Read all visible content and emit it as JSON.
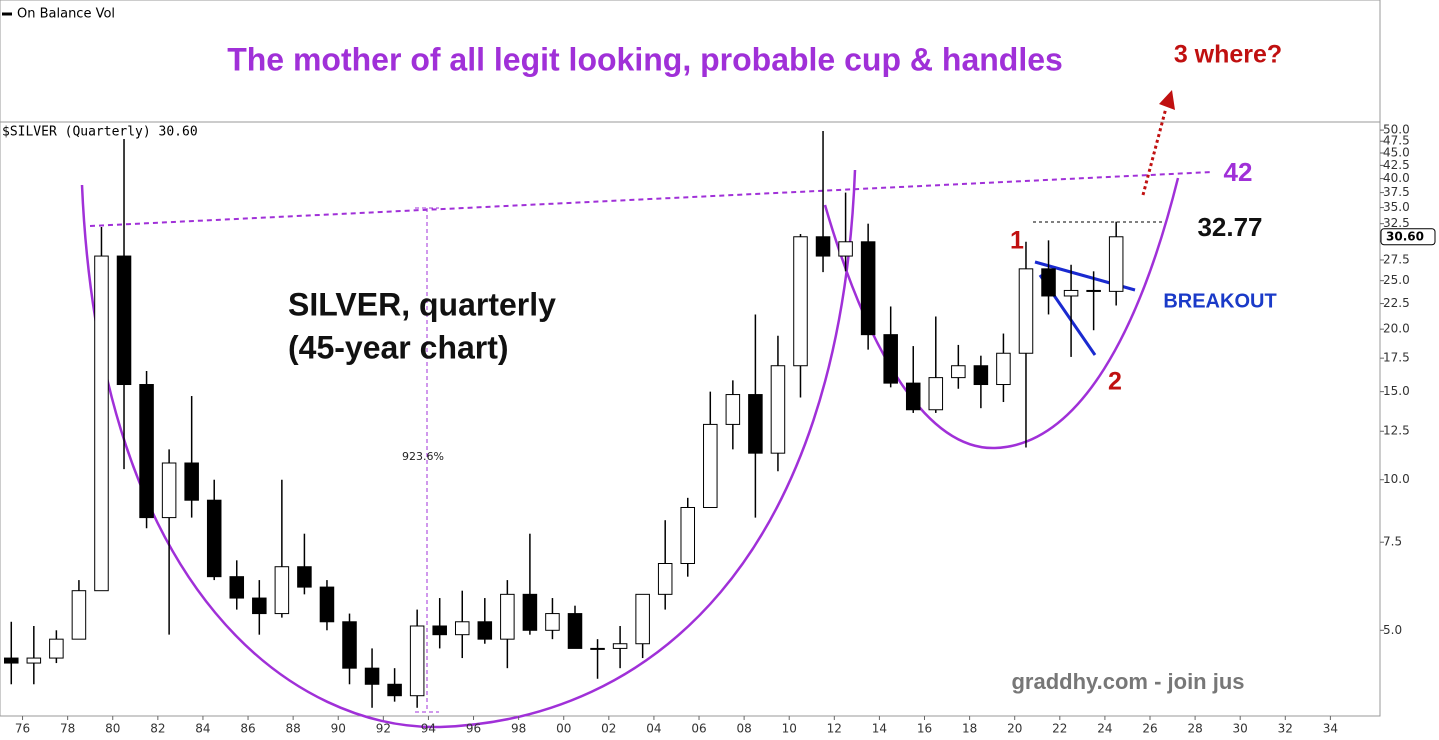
{
  "chart_data": {
    "type": "candlestick",
    "indicator_label": "On Balance Vol",
    "series_label": "$SILVER (Quarterly) 30.60",
    "title": "The mother of all legit looking, probable cup & handles",
    "annotations": {
      "three": "3 where?",
      "level": "42",
      "high_level": "32.77",
      "one": "1",
      "two": "2",
      "breakout": "BREAKOUT",
      "name": "SILVER, quarterly",
      "span": "(45-year chart)",
      "gain": "923.6%",
      "credit": "graddhy.com - join jus"
    },
    "last_price": {
      "value": 30.6,
      "label": "30.60"
    },
    "up_color": "#ffffff",
    "down_color": "#000000",
    "log_scale": true,
    "x": [
      1975,
      1976,
      1977,
      1978,
      1979,
      1980,
      1981,
      1982,
      1983,
      1984,
      1985,
      1986,
      1987,
      1988,
      1989,
      1990,
      1991,
      1992,
      1993,
      1994,
      1995,
      1996,
      1997,
      1998,
      1999,
      2000,
      2001,
      2002,
      2003,
      2004,
      2005,
      2006,
      2007,
      2008,
      2009,
      2010,
      2011,
      2012,
      2013,
      2014,
      2015,
      2016,
      2017,
      2018,
      2019,
      2020,
      2021,
      2022,
      2023,
      2024
    ],
    "open": [
      4.4,
      4.3,
      4.4,
      4.8,
      6.0,
      28,
      15.5,
      8.4,
      10.8,
      9.1,
      6.4,
      5.8,
      5.4,
      6.7,
      6.1,
      5.2,
      4.2,
      3.9,
      3.7,
      5.1,
      4.9,
      5.2,
      4.8,
      5.9,
      5.0,
      5.4,
      4.6,
      4.6,
      4.7,
      5.9,
      6.8,
      8.8,
      12.9,
      14.8,
      11.3,
      16.9,
      30.6,
      28,
      29.9,
      19.5,
      15.6,
      13.8,
      16,
      16.9,
      15.5,
      17.9,
      26.4,
      23.3,
      23.9,
      23.8
    ],
    "high": [
      5.2,
      5.1,
      5.0,
      6.3,
      32,
      48,
      16.5,
      11.5,
      14.7,
      10,
      6.9,
      6.3,
      10,
      7.8,
      6.3,
      5.4,
      4.6,
      4.2,
      5.5,
      5.8,
      6.0,
      5.8,
      6.3,
      7.8,
      5.8,
      5.6,
      4.8,
      5.1,
      5.9,
      8.3,
      9.2,
      15,
      15.8,
      21.4,
      19.4,
      31,
      49.8,
      37.5,
      32.5,
      22.2,
      18.5,
      21.2,
      18.6,
      17.7,
      19.6,
      29.9,
      30.1,
      26.9,
      26.1,
      32.8
    ],
    "low": [
      3.9,
      3.9,
      4.3,
      4.8,
      6.0,
      10.5,
      8,
      4.9,
      8.4,
      6.3,
      5.5,
      4.9,
      5.3,
      5.9,
      5.0,
      3.9,
      3.5,
      3.6,
      3.5,
      4.6,
      4.4,
      4.7,
      4.2,
      4.9,
      4.8,
      4.6,
      4.0,
      4.2,
      4.4,
      5.5,
      6.4,
      8.8,
      11.5,
      8.4,
      10.4,
      14.6,
      26,
      26.1,
      18.2,
      15.3,
      13.6,
      13.6,
      15.2,
      13.9,
      14.3,
      11.6,
      21.4,
      17.6,
      19.9,
      22.3
    ],
    "close": [
      4.3,
      4.4,
      4.8,
      6.0,
      28,
      15.5,
      8.4,
      10.8,
      9.1,
      6.4,
      5.8,
      5.4,
      6.7,
      6.1,
      5.2,
      4.2,
      3.9,
      3.7,
      5.1,
      4.9,
      5.2,
      4.8,
      5.9,
      5.0,
      5.4,
      4.6,
      4.6,
      4.7,
      5.9,
      6.8,
      8.8,
      12.9,
      14.8,
      11.3,
      16.9,
      30.6,
      28,
      29.9,
      19.5,
      15.6,
      13.8,
      16,
      16.9,
      15.5,
      17.9,
      26.4,
      23.3,
      23.9,
      23.8,
      30.6
    ],
    "xlim": [
      1975,
      2036.2
    ],
    "xticks": [
      {
        "value": 1976,
        "label": "76"
      },
      {
        "value": 1978,
        "label": "78"
      },
      {
        "value": 1980,
        "label": "80"
      },
      {
        "value": 1982,
        "label": "82"
      },
      {
        "value": 1984,
        "label": "84"
      },
      {
        "value": 1986,
        "label": "86"
      },
      {
        "value": 1988,
        "label": "88"
      },
      {
        "value": 1990,
        "label": "90"
      },
      {
        "value": 1992,
        "label": "92"
      },
      {
        "value": 1994,
        "label": "94"
      },
      {
        "value": 1996,
        "label": "96"
      },
      {
        "value": 1998,
        "label": "98"
      },
      {
        "value": 2000,
        "label": "00"
      },
      {
        "value": 2002,
        "label": "02"
      },
      {
        "value": 2004,
        "label": "04"
      },
      {
        "value": 2006,
        "label": "06"
      },
      {
        "value": 2008,
        "label": "08"
      },
      {
        "value": 2010,
        "label": "10"
      },
      {
        "value": 2012,
        "label": "12"
      },
      {
        "value": 2014,
        "label": "14"
      },
      {
        "value": 2016,
        "label": "16"
      },
      {
        "value": 2018,
        "label": "18"
      },
      {
        "value": 2020,
        "label": "20"
      },
      {
        "value": 2022,
        "label": "22"
      },
      {
        "value": 2024,
        "label": "24"
      },
      {
        "value": 2026,
        "label": "26"
      },
      {
        "value": 2028,
        "label": "28"
      },
      {
        "value": 2030,
        "label": "30"
      },
      {
        "value": 2032,
        "label": "32"
      },
      {
        "value": 2034,
        "label": "34"
      }
    ],
    "ylim": [
      3.37,
      51.9
    ],
    "yticks": [
      {
        "value": 5,
        "label": "5.0"
      },
      7.5,
      {
        "value": 10,
        "label": "10.0"
      },
      12.5,
      {
        "value": 15,
        "label": "15.0"
      },
      17.5,
      {
        "value": 20,
        "label": "20.0"
      },
      22.5,
      {
        "value": 25,
        "label": "25.0"
      },
      27.5,
      {
        "value": 30,
        "label": "30.0"
      },
      32.5,
      {
        "value": 35,
        "label": "35.0"
      },
      37.5,
      {
        "value": 40,
        "label": "40.0"
      },
      42.5,
      {
        "value": 45,
        "label": "45.0"
      },
      47.5,
      {
        "value": 50,
        "label": "50.0"
      }
    ]
  }
}
